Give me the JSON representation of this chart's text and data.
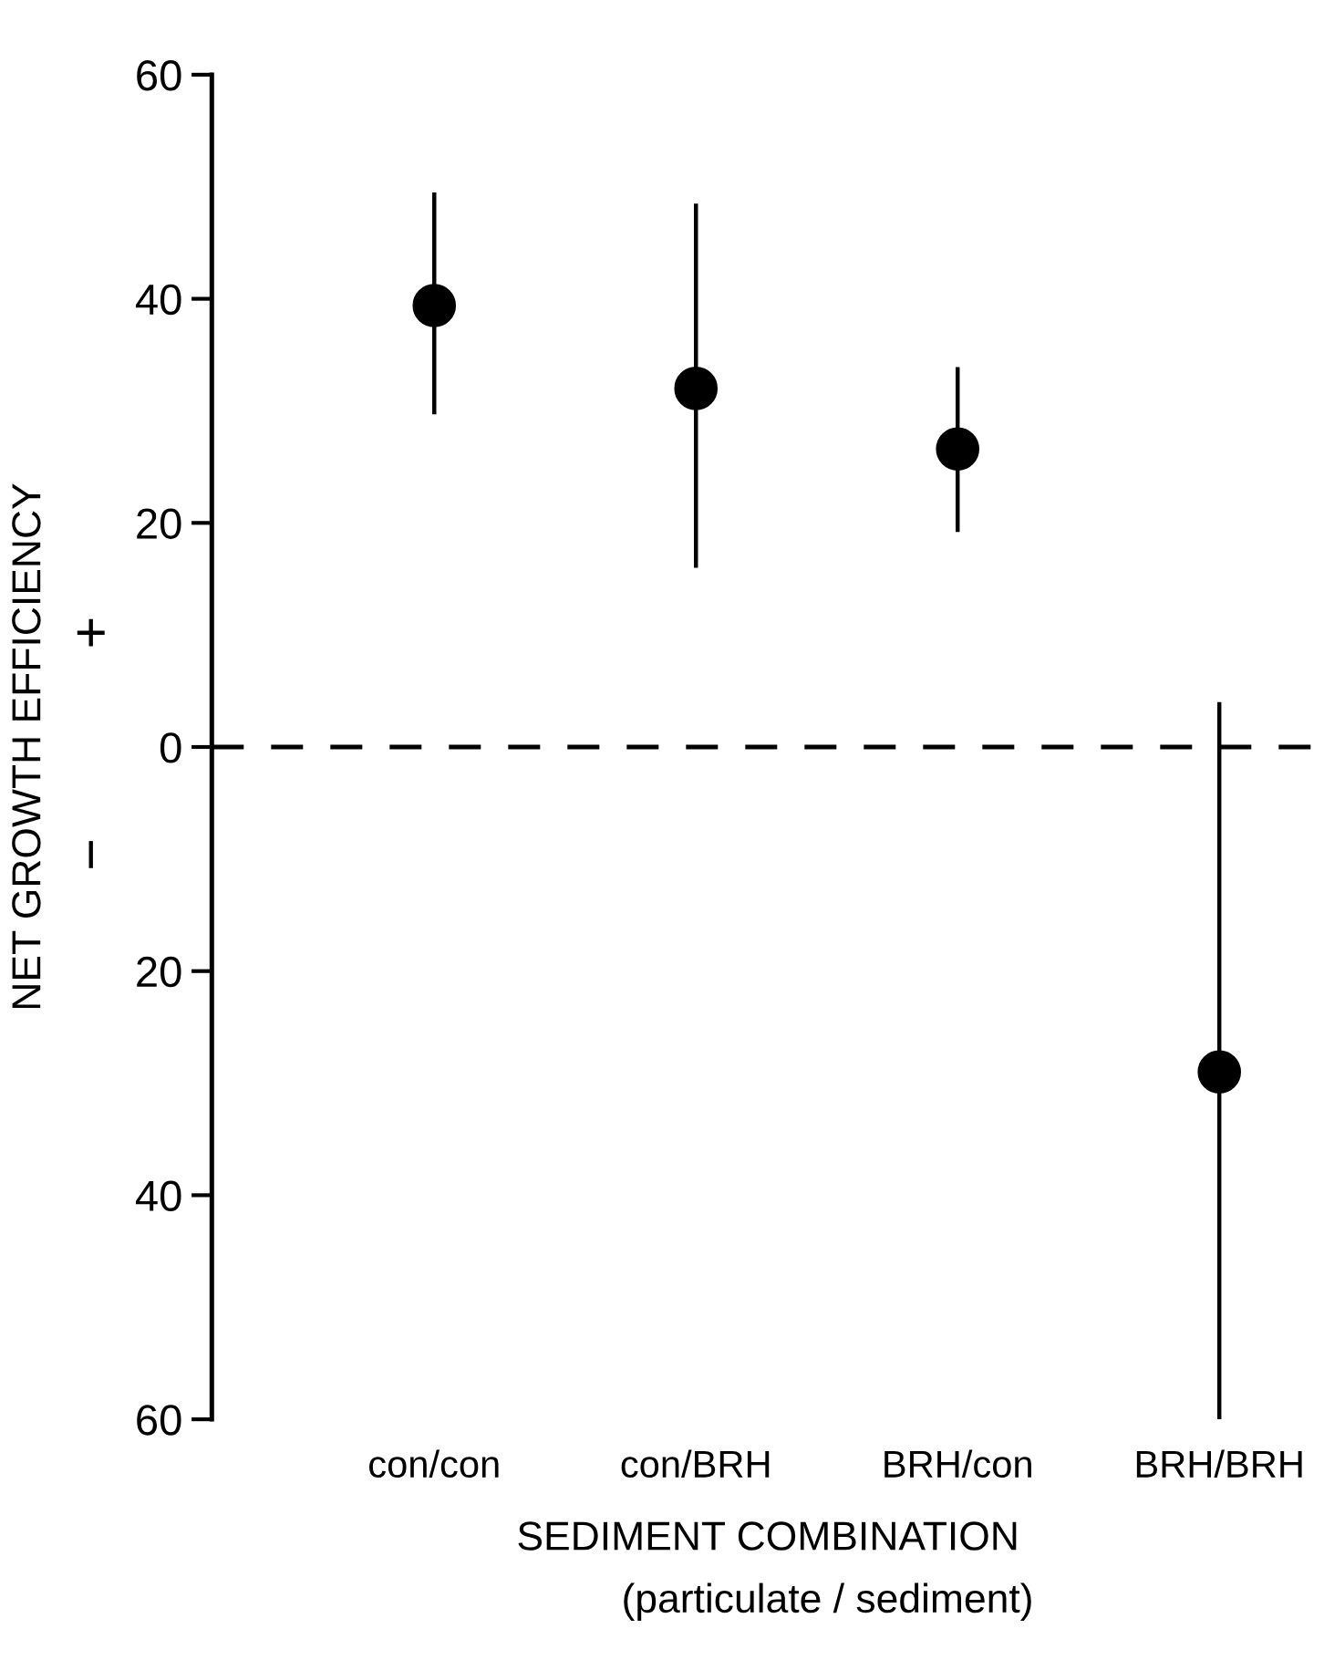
{
  "chart_data": {
    "type": "scatter",
    "xlabel": "SEDIMENT COMBINATION",
    "ylabel": "NET GROWTH EFFICIENCY",
    "categories": [
      "con/con",
      "con/BRH",
      "BRH/con",
      "BRH/BRH"
    ],
    "series": [
      {
        "color": "#000000",
        "values": [
          39.4,
          32,
          26.6,
          -29
        ],
        "errors": [
          [
            29.7,
            49.5
          ],
          [
            16,
            48.5
          ],
          [
            19.2,
            33.9
          ],
          [
            -60,
            4
          ]
        ]
      }
    ],
    "ylim": [
      -60,
      60
    ],
    "yticks": [
      {
        "value": -60,
        "label": "60"
      },
      {
        "value": -40,
        "label": "40"
      },
      {
        "value": -20,
        "label": "20"
      },
      0,
      20,
      40,
      60
    ],
    "ref_lines": [
      {
        "axis": "y",
        "value": 0,
        "line_style": "dashed",
        "color": "#000000"
      }
    ],
    "marker": "circle",
    "grid": false,
    "legend": false,
    "annotations": [
      "+",
      "−",
      "(particulate / sediment)"
    ]
  }
}
